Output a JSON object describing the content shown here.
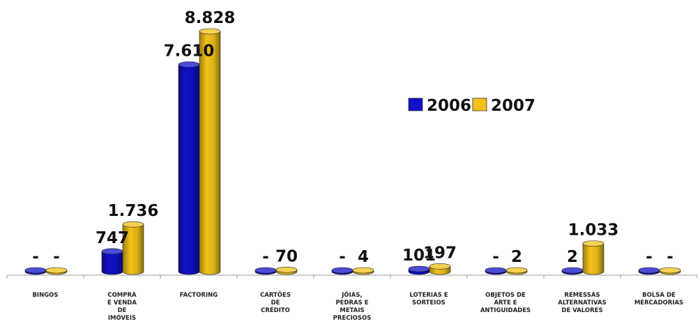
{
  "chart_data": {
    "type": "bar",
    "categories": [
      [
        "BINGOS"
      ],
      [
        "COMPRA",
        "E VENDA",
        "DE",
        "IMÓVEIS"
      ],
      [
        "FACTORING"
      ],
      [
        "CARTÕES",
        "DE",
        "CRÉDITO"
      ],
      [
        "JÓIAS,",
        "PEDRAS E",
        "METAIS",
        "PRECIOSOS"
      ],
      [
        "LOTERIAS E",
        "SORTEIOS"
      ],
      [
        "OBJETOS DE",
        "ARTE E",
        "ANTIGUIDADES"
      ],
      [
        "REMESSAS",
        "ALTERNATIVAS",
        "DE VALORES"
      ],
      [
        "BOLSA DE",
        "MERCADORIAS"
      ]
    ],
    "series": [
      {
        "name": "2006",
        "color": "#1010c8",
        "values": [
          0,
          747,
          7610,
          0,
          0,
          101,
          0,
          2,
          0
        ],
        "labels": [
          "-",
          "747",
          "7.610",
          "-",
          "-",
          "101",
          "-",
          "2",
          "-"
        ]
      },
      {
        "name": "2007",
        "color": "#f2c21a",
        "values": [
          0,
          1736,
          8828,
          70,
          4,
          197,
          2,
          1033,
          0
        ],
        "labels": [
          "-",
          "1.736",
          "8.828",
          "70",
          "4",
          "197",
          "2",
          "1.033",
          "-"
        ]
      }
    ],
    "ylim": [
      0,
      8828
    ],
    "legend_position": "top-right",
    "style": "3d-cylinder"
  }
}
